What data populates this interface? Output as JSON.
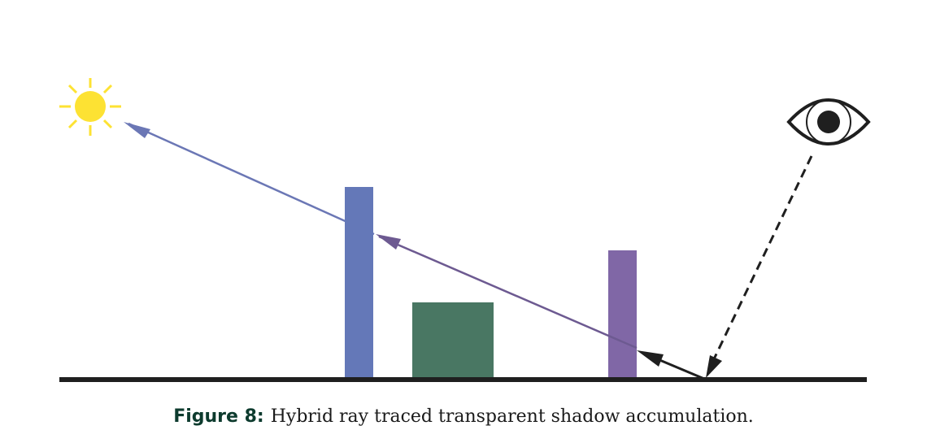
{
  "figure": {
    "caption_label": "Figure 8:",
    "caption_text": "Hybrid ray traced transparent shadow accumulation."
  },
  "colors": {
    "caption_label": "#0d3b2e",
    "sun": "#fde233",
    "ground": "#1f1f1f",
    "tall_blocker": "#6478b8",
    "opaque_box": "#497763",
    "transparent_blocker": "#8067a6",
    "ray_to_sun": "#6b77b5",
    "ray_segment": "#6d5a91",
    "eye": "#1f1f1f",
    "reflect_arrow": "#1f1f1f"
  },
  "icons": {
    "light_source": "sun-icon",
    "viewer": "eye-icon"
  }
}
